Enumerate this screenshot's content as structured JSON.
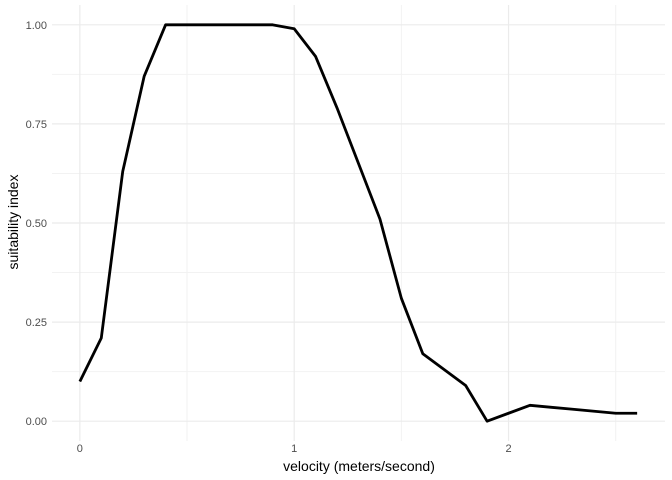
{
  "chart_data": {
    "type": "line",
    "title": "",
    "xlabel": "velocity (meters/second)",
    "ylabel": "suitability index",
    "xlim": [
      -0.13,
      2.73
    ],
    "ylim": [
      -0.05,
      1.05
    ],
    "x_ticks": [
      0,
      1,
      2
    ],
    "x_tick_labels": [
      "0",
      "1",
      "2"
    ],
    "y_ticks": [
      0,
      0.25,
      0.5,
      0.75,
      1.0
    ],
    "y_tick_labels": [
      "0.00",
      "0.25",
      "0.50",
      "0.75",
      "1.00"
    ],
    "grid": true,
    "legend": "none",
    "series": [
      {
        "color": "#000000",
        "x": [
          0,
          0.1,
          0.2,
          0.3,
          0.4,
          0.5,
          0.6,
          0.7,
          0.8,
          0.9,
          1.0,
          1.1,
          1.2,
          1.3,
          1.4,
          1.5,
          1.6,
          1.7,
          1.8,
          1.9,
          2.0,
          2.1,
          2.2,
          2.3,
          2.4,
          2.5,
          2.6
        ],
        "values": [
          0.1,
          0.21,
          0.63,
          0.87,
          1.0,
          1.0,
          1.0,
          1.0,
          1.0,
          1.0,
          0.99,
          0.92,
          0.79,
          0.65,
          0.51,
          0.31,
          0.17,
          0.13,
          0.09,
          0.0,
          0.02,
          0.04,
          0.035,
          0.03,
          0.025,
          0.02,
          0.02
        ]
      }
    ]
  },
  "colors": {
    "background": "#ffffff",
    "grid_major": "#ebebeb",
    "grid_minor": "#f2f2f2",
    "line": "#000000",
    "tick_text": "#4d4d4d"
  }
}
